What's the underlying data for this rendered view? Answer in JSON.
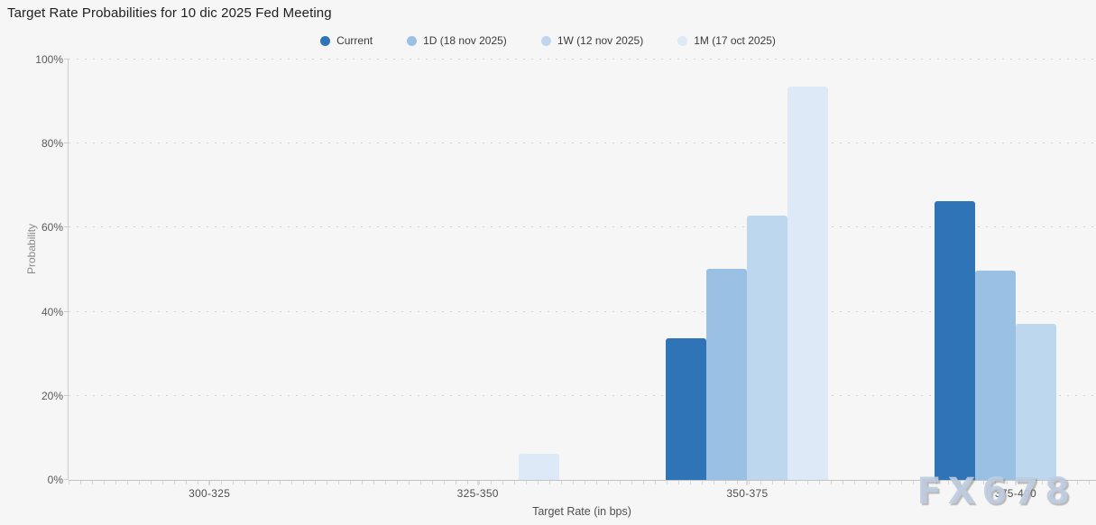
{
  "title": "Target Rate Probabilities for 10 dic 2025 Fed Meeting",
  "watermark": "FX678",
  "colors": {
    "background": "#f6f6f6",
    "axis_line": "#c3c3c3",
    "gridline": "#d4d4d4",
    "tick_text": "#5a5a5a",
    "series_current": "#2e74b6",
    "series_1d": "#9ac1e4",
    "series_1w": "#bdd7ee",
    "series_1m": "#dde9f6"
  },
  "chart_data": {
    "type": "bar",
    "title": "Target Rate Probabilities for 10 dic 2025 Fed Meeting",
    "xlabel": "Target Rate (in bps)",
    "ylabel": "Probability",
    "categories": [
      "300-325",
      "325-350",
      "350-375",
      "375-400"
    ],
    "series": [
      {
        "name": "Current",
        "color": "#2e74b6",
        "values": [
          0,
          0,
          33.6,
          66.4
        ]
      },
      {
        "name": "1D (18 nov 2025)",
        "color": "#9ac1e4",
        "values": [
          0,
          0,
          50.2,
          49.8
        ]
      },
      {
        "name": "1W (12 nov 2025)",
        "color": "#bdd7ee",
        "values": [
          0,
          0,
          62.8,
          37.1
        ]
      },
      {
        "name": "1M (17 oct 2025)",
        "color": "#dde9f6",
        "values": [
          0,
          6.2,
          93.6,
          0
        ]
      }
    ],
    "ylim": [
      0,
      100
    ],
    "yticks": [
      "0%",
      "20%",
      "40%",
      "60%",
      "80%",
      "100%"
    ],
    "grid": true,
    "legend_position": "top"
  }
}
